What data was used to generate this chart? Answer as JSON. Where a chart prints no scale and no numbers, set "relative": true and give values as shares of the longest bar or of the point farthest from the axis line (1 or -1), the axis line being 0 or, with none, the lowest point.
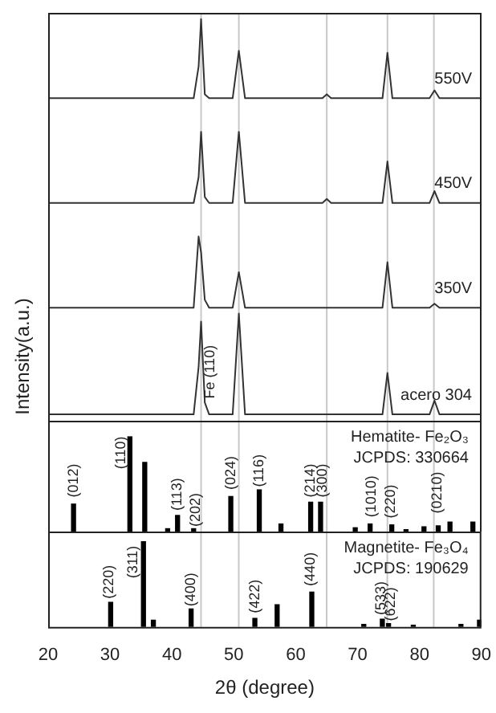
{
  "chart_data": [
    {
      "type": "line",
      "ylabel": "Intensity(a.u.)",
      "relative": true,
      "xlim": [
        20,
        90
      ],
      "xticks": [
        20,
        30,
        40,
        50,
        60,
        70,
        80,
        90
      ],
      "tick_labels": false,
      "x": [
        20,
        25,
        30,
        35,
        40,
        43.5,
        44.3,
        44.7,
        45.3,
        46,
        49.8,
        50.8,
        51.8,
        55,
        60,
        64.3,
        65,
        65.7,
        70,
        74,
        74.8,
        75.6,
        78,
        81.6,
        82.4,
        83.2,
        86,
        90
      ],
      "series": [
        {
          "name": "550V",
          "color": "#333333",
          "values": [
            0.8,
            0.8,
            0.8,
            0.8,
            0.8,
            0.8,
            0.88,
            1.0,
            0.81,
            0.8,
            0.8,
            0.92,
            0.8,
            0.8,
            0.8,
            0.8,
            0.81,
            0.8,
            0.8,
            0.8,
            0.915,
            0.8,
            0.8,
            0.8,
            0.82,
            0.8,
            0.8,
            0.8
          ]
        },
        {
          "name": "450V",
          "color": "#333333",
          "values": [
            0.535,
            0.535,
            0.535,
            0.535,
            0.535,
            0.535,
            0.6,
            0.715,
            0.55,
            0.535,
            0.535,
            0.715,
            0.535,
            0.535,
            0.535,
            0.535,
            0.545,
            0.535,
            0.535,
            0.535,
            0.64,
            0.535,
            0.535,
            0.535,
            0.565,
            0.535,
            0.535,
            0.535
          ]
        },
        {
          "name": "350V",
          "color": "#333333",
          "values": [
            0.27,
            0.27,
            0.27,
            0.27,
            0.27,
            0.27,
            0.45,
            0.41,
            0.29,
            0.27,
            0.27,
            0.36,
            0.27,
            0.27,
            0.27,
            0.27,
            0.27,
            0.27,
            0.27,
            0.27,
            0.385,
            0.27,
            0.27,
            0.27,
            0.28,
            0.27,
            0.27,
            0.27
          ]
        },
        {
          "name": "acero 304",
          "color": "#333333",
          "values": [
            0.0,
            0.0,
            0.0,
            0.0,
            0.0,
            0.0,
            0.12,
            0.235,
            0.03,
            0.0,
            0.0,
            0.255,
            0.0,
            0.0,
            0.0,
            0.0,
            0.0,
            0.0,
            0.0,
            0.0,
            0.105,
            0.0,
            0.0,
            0.0,
            0.035,
            0.0,
            0.0,
            0.0
          ]
        }
      ],
      "annotations": [
        {
          "text": "Fe (110)",
          "x": 46.2,
          "y": 0.04
        }
      ],
      "ref_lines": [
        {
          "axis": "x",
          "value": 44.7,
          "color": "#c8c8c8"
        },
        {
          "axis": "x",
          "value": 50.8,
          "color": "#c8c8c8"
        },
        {
          "axis": "x",
          "value": 65.0,
          "color": "#c8c8c8"
        },
        {
          "axis": "x",
          "value": 74.8,
          "color": "#c8c8c8"
        },
        {
          "axis": "x",
          "value": 82.3,
          "color": "#c8c8c8"
        }
      ]
    },
    {
      "type": "bar",
      "relative": true,
      "xlim": [
        20,
        90
      ],
      "xticks": [
        20,
        30,
        40,
        50,
        60,
        70,
        80,
        90
      ],
      "tick_labels": false,
      "color": "#000000",
      "x": [
        24.1,
        33.2,
        35.6,
        39.3,
        40.9,
        43.5,
        49.5,
        54.1,
        57.6,
        62.4,
        64.0,
        69.6,
        72.0,
        75.5,
        77.8,
        80.7,
        83.0,
        84.9,
        88.6
      ],
      "values": [
        0.29,
        1.0,
        0.73,
        0.03,
        0.17,
        0.03,
        0.37,
        0.44,
        0.08,
        0.31,
        0.31,
        0.04,
        0.08,
        0.07,
        0.02,
        0.05,
        0.06,
        0.1,
        0.1
      ],
      "annotations": [
        "Hematite- Fe₂O₃",
        "JCPDS: 330664",
        {
          "text": "(012)",
          "x": 24.1,
          "y": 0.36
        },
        {
          "text": "(110)",
          "x": 31.8,
          "y": 0.66
        },
        {
          "text": "(113)",
          "x": 40.9,
          "y": 0.22
        },
        {
          "text": "(202)",
          "x": 43.8,
          "y": 0.05
        },
        {
          "text": "(024)",
          "x": 49.5,
          "y": 0.44
        },
        {
          "text": "(116)",
          "x": 54.1,
          "y": 0.47
        },
        {
          "text": "(214)",
          "x": 62.4,
          "y": 0.36
        },
        {
          "text": "(300)",
          "x": 64.3,
          "y": 0.36
        },
        {
          "text": "(1010)",
          "x": 72.2,
          "y": 0.15
        },
        {
          "text": "(220)",
          "x": 75.3,
          "y": 0.14
        },
        {
          "text": "(0210)",
          "x": 82.9,
          "y": 0.19
        }
      ],
      "ref_lines": [
        {
          "axis": "x",
          "value": 44.7,
          "color": "#c8c8c8"
        },
        {
          "axis": "x",
          "value": 50.8,
          "color": "#c8c8c8"
        },
        {
          "axis": "x",
          "value": 65.0,
          "color": "#c8c8c8"
        },
        {
          "axis": "x",
          "value": 74.8,
          "color": "#c8c8c8"
        },
        {
          "axis": "x",
          "value": 82.3,
          "color": "#c8c8c8"
        }
      ]
    },
    {
      "type": "bar",
      "relative": true,
      "xlabel": "2θ (degree)",
      "xlim": [
        20,
        90
      ],
      "xticks": [
        20,
        30,
        40,
        50,
        60,
        70,
        80,
        90
      ],
      "tick_labels": "x",
      "color": "#000000",
      "x": [
        30.1,
        35.4,
        37.0,
        43.1,
        53.4,
        57.0,
        62.6,
        71.0,
        74.0,
        75.0,
        79.0,
        86.7,
        89.7
      ],
      "values": [
        0.29,
        1.0,
        0.08,
        0.21,
        0.1,
        0.26,
        0.41,
        0.03,
        0.09,
        0.04,
        0.02,
        0.03,
        0.08
      ],
      "annotations": [
        "Magnetite- Fe₃O₄",
        "JCPDS: 190629",
        {
          "text": "(220)",
          "x": 29.8,
          "y": 0.33
        },
        {
          "text": "(311)",
          "x": 33.8,
          "y": 0.57
        },
        {
          "text": "(400)",
          "x": 43.1,
          "y": 0.24
        },
        {
          "text": "(422)",
          "x": 53.4,
          "y": 0.16
        },
        {
          "text": "(440)",
          "x": 62.4,
          "y": 0.48
        },
        {
          "text": "(533)",
          "x": 73.8,
          "y": 0.14
        },
        {
          "text": "(622)",
          "x": 75.4,
          "y": 0.07
        }
      ],
      "ref_lines": [
        {
          "axis": "x",
          "value": 44.7,
          "color": "#c8c8c8"
        },
        {
          "axis": "x",
          "value": 50.8,
          "color": "#c8c8c8"
        },
        {
          "axis": "x",
          "value": 65.0,
          "color": "#c8c8c8"
        },
        {
          "axis": "x",
          "value": 74.8,
          "color": "#c8c8c8"
        },
        {
          "axis": "x",
          "value": 82.3,
          "color": "#c8c8c8"
        }
      ]
    }
  ]
}
